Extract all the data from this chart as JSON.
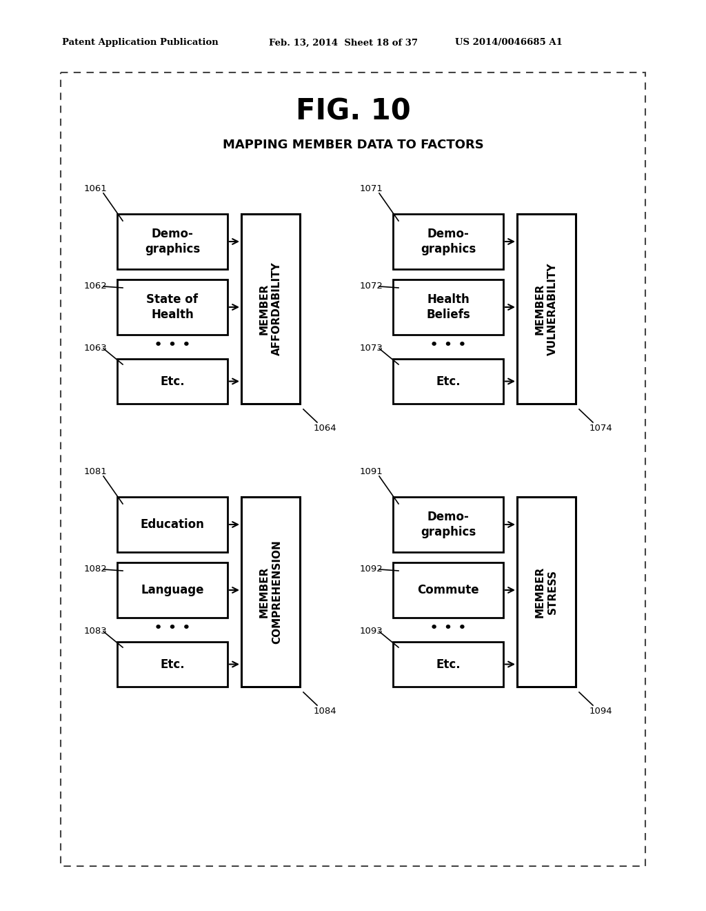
{
  "fig_title": "FIG. 10",
  "subtitle": "MAPPING MEMBER DATA TO FACTORS",
  "header_left": "Patent Application Publication",
  "header_mid": "Feb. 13, 2014  Sheet 18 of 37",
  "header_right": "US 2014/0046685 A1",
  "background_color": "#ffffff",
  "groups": [
    {
      "label_id": "1061",
      "label2_id": "1062",
      "label3_id": "1063",
      "box1_lines": [
        "Demo-",
        "graphics"
      ],
      "box2_lines": [
        "State of",
        "Health"
      ],
      "box3_lines": [
        "Etc."
      ],
      "output_text": "MEMBER\nAFFORDABILITY",
      "output_id": "1064"
    },
    {
      "label_id": "1071",
      "label2_id": "1072",
      "label3_id": "1073",
      "box1_lines": [
        "Demo-",
        "graphics"
      ],
      "box2_lines": [
        "Health",
        "Beliefs"
      ],
      "box3_lines": [
        "Etc."
      ],
      "output_text": "MEMBER\nVULNERABILITY",
      "output_id": "1074"
    },
    {
      "label_id": "1081",
      "label2_id": "1082",
      "label3_id": "1083",
      "box1_lines": [
        "Education"
      ],
      "box2_lines": [
        "Language"
      ],
      "box3_lines": [
        "Etc."
      ],
      "output_text": "MEMBER\nCOMPREHENSION",
      "output_id": "1084"
    },
    {
      "label_id": "1091",
      "label2_id": "1092",
      "label3_id": "1093",
      "box1_lines": [
        "Demo-",
        "graphics"
      ],
      "box2_lines": [
        "Commute"
      ],
      "box3_lines": [
        "Etc."
      ],
      "output_text": "MEMBER\nSTRESS",
      "output_id": "1094"
    }
  ]
}
